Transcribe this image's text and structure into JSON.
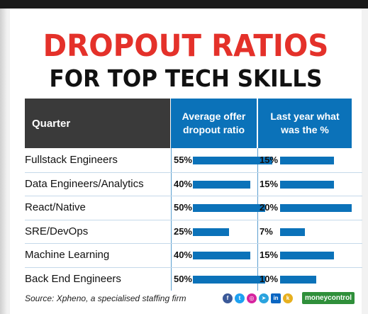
{
  "title_line1": "DROPOUT RATIOS",
  "title_line2": "FOR TOP TECH SKILLS",
  "headers": {
    "quarter": "Quarter",
    "avg_line1": "Average offer",
    "avg_line2": "dropout ratio",
    "last_line1": "Last year what",
    "last_line2": "was the %"
  },
  "chart_data": {
    "type": "bar",
    "title": "DROPOUT RATIOS FOR TOP TECH SKILLS",
    "categories": [
      "Fullstack Engineers",
      "Data Engineers/Analytics",
      "React/Native",
      "SRE/DevOps",
      "Machine Learning",
      "Back End Engineers"
    ],
    "series": [
      {
        "values": [
          55,
          40,
          50,
          25,
          40,
          50
        ],
        "labels": [
          "55%",
          "40%",
          "50%",
          "25%",
          "40%",
          "50%"
        ]
      },
      {
        "values": [
          15,
          15,
          20,
          7,
          15,
          10
        ],
        "labels": [
          "15%",
          "15%",
          "20%",
          "7%",
          "15%",
          "10%"
        ]
      }
    ],
    "bar_color": "#0b72b9"
  },
  "source": "Source: Xpheno, a specialised staffing firm",
  "brand": "moneycontrol",
  "social_icons": [
    "facebook-icon",
    "twitter-icon",
    "instagram-icon",
    "telegram-icon",
    "linkedin-icon",
    "koo-icon"
  ]
}
